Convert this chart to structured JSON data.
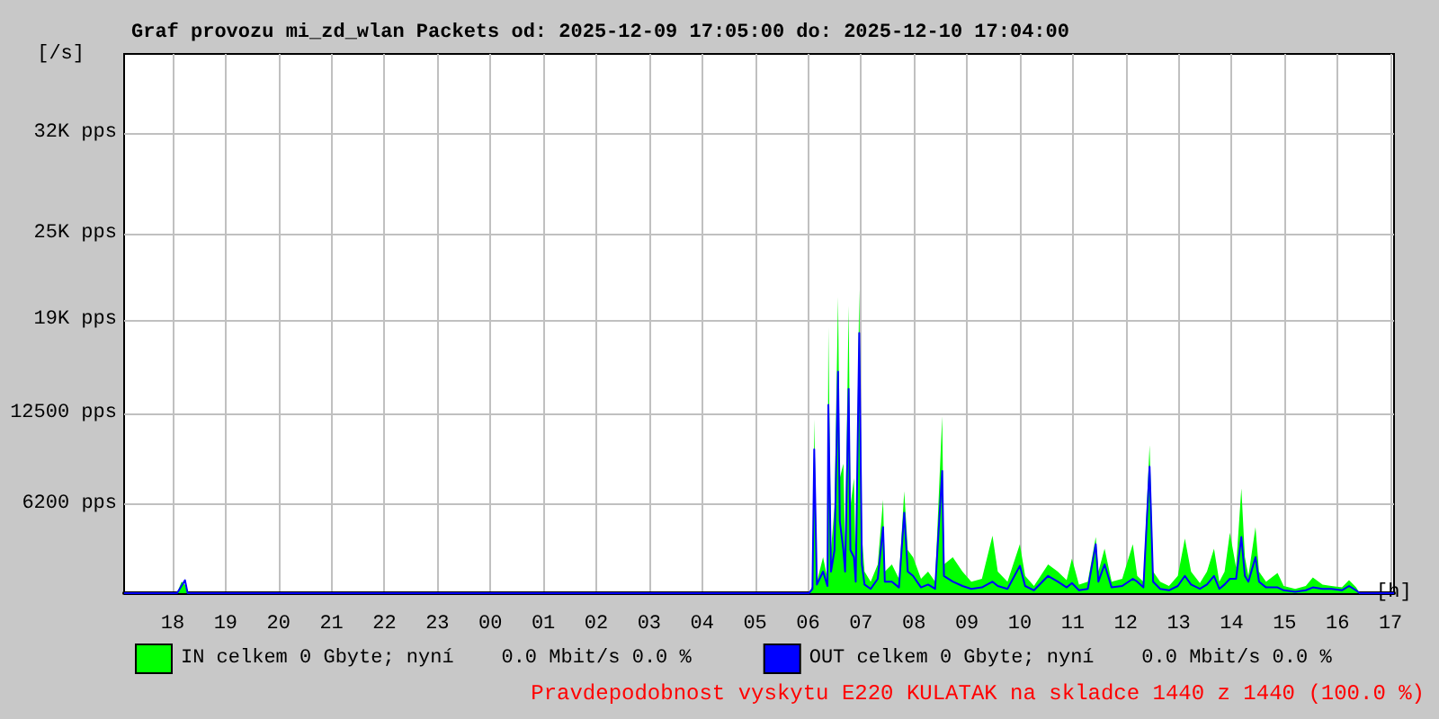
{
  "chart_data": {
    "type": "area",
    "title": "Graf provozu mi_zd_wlan Packets od: 2025-12-09 17:05:00 do: 2025-12-10 17:04:00",
    "xlabel": "[h]",
    "ylabel": "[/s]",
    "xlim": [
      "2025-12-09T17:05",
      "2025-12-10T17:04"
    ],
    "xticks": [
      {
        "value": "2025-12-09T18:00",
        "label": "18"
      },
      {
        "value": "2025-12-09T19:00",
        "label": "19"
      },
      {
        "value": "2025-12-09T20:00",
        "label": "20"
      },
      {
        "value": "2025-12-09T21:00",
        "label": "21"
      },
      {
        "value": "2025-12-09T22:00",
        "label": "22"
      },
      {
        "value": "2025-12-09T23:00",
        "label": "23"
      },
      {
        "value": "2025-12-10T00:00",
        "label": "00"
      },
      {
        "value": "2025-12-10T01:00",
        "label": "01"
      },
      {
        "value": "2025-12-10T02:00",
        "label": "02"
      },
      {
        "value": "2025-12-10T03:00",
        "label": "03"
      },
      {
        "value": "2025-12-10T04:00",
        "label": "04"
      },
      {
        "value": "2025-12-10T05:00",
        "label": "05"
      },
      {
        "value": "2025-12-10T06:00",
        "label": "06"
      },
      {
        "value": "2025-12-10T07:00",
        "label": "07"
      },
      {
        "value": "2025-12-10T08:00",
        "label": "08"
      },
      {
        "value": "2025-12-10T09:00",
        "label": "09"
      },
      {
        "value": "2025-12-10T10:00",
        "label": "10"
      },
      {
        "value": "2025-12-10T11:00",
        "label": "11"
      },
      {
        "value": "2025-12-10T12:00",
        "label": "12"
      },
      {
        "value": "2025-12-10T13:00",
        "label": "13"
      },
      {
        "value": "2025-12-10T14:00",
        "label": "14"
      },
      {
        "value": "2025-12-10T15:00",
        "label": "15"
      },
      {
        "value": "2025-12-10T16:00",
        "label": "16"
      },
      {
        "value": "2025-12-10T17:00",
        "label": "17"
      }
    ],
    "ylim": [
      0,
      37500
    ],
    "yticks": [
      {
        "value": 6200,
        "label": "6200 pps"
      },
      {
        "value": 12500,
        "label": "12500 pps"
      },
      {
        "value": 19000,
        "label": "19K pps"
      },
      {
        "value": 25000,
        "label": "25K pps"
      },
      {
        "value": 32000,
        "label": "32K pps"
      }
    ],
    "grid": true,
    "legend": "bottom",
    "marker": "none",
    "x": [
      "2025-12-09T17:05",
      "2025-12-09T18:05",
      "2025-12-09T18:10",
      "2025-12-09T18:14",
      "2025-12-09T18:17",
      "2025-12-10T06:01",
      "2025-12-10T06:05",
      "2025-12-10T06:07",
      "2025-12-10T06:10",
      "2025-12-10T06:17",
      "2025-12-10T06:22",
      "2025-12-10T06:23",
      "2025-12-10T06:26",
      "2025-12-10T06:30",
      "2025-12-10T06:34",
      "2025-12-10T06:36",
      "2025-12-10T06:40",
      "2025-12-10T06:42",
      "2025-12-10T06:46",
      "2025-12-10T06:48",
      "2025-12-10T06:52",
      "2025-12-10T06:54",
      "2025-12-10T06:58",
      "2025-12-10T07:01",
      "2025-12-10T07:04",
      "2025-12-10T07:11",
      "2025-12-10T07:19",
      "2025-12-10T07:25",
      "2025-12-10T07:27",
      "2025-12-10T07:35",
      "2025-12-10T07:43",
      "2025-12-10T07:49",
      "2025-12-10T07:53",
      "2025-12-10T07:59",
      "2025-12-10T08:08",
      "2025-12-10T08:16",
      "2025-12-10T08:24",
      "2025-12-10T08:32",
      "2025-12-10T08:34",
      "2025-12-10T08:44",
      "2025-12-10T08:55",
      "2025-12-10T09:05",
      "2025-12-10T09:17",
      "2025-12-10T09:29",
      "2025-12-10T09:35",
      "2025-12-10T09:46",
      "2025-12-10T10:00",
      "2025-12-10T10:06",
      "2025-12-10T10:16",
      "2025-12-10T10:32",
      "2025-12-10T10:43",
      "2025-12-10T10:53",
      "2025-12-10T10:59",
      "2025-12-10T11:07",
      "2025-12-10T11:17",
      "2025-12-10T11:26",
      "2025-12-10T11:29",
      "2025-12-10T11:36",
      "2025-12-10T11:44",
      "2025-12-10T11:56",
      "2025-12-10T12:08",
      "2025-12-10T12:13",
      "2025-12-10T12:20",
      "2025-12-10T12:27",
      "2025-12-10T12:31",
      "2025-12-10T12:39",
      "2025-12-10T12:49",
      "2025-12-10T12:59",
      "2025-12-10T13:07",
      "2025-12-10T13:14",
      "2025-12-10T13:24",
      "2025-12-10T13:32",
      "2025-12-10T13:40",
      "2025-12-10T13:46",
      "2025-12-10T13:52",
      "2025-12-10T13:58",
      "2025-12-10T14:05",
      "2025-12-10T14:11",
      "2025-12-10T14:15",
      "2025-12-10T14:19",
      "2025-12-10T14:27",
      "2025-12-10T14:31",
      "2025-12-10T14:39",
      "2025-12-10T14:52",
      "2025-12-10T14:59",
      "2025-12-10T15:12",
      "2025-12-10T15:24",
      "2025-12-10T15:32",
      "2025-12-10T15:43",
      "2025-12-10T15:53",
      "2025-12-10T16:05",
      "2025-12-10T16:13",
      "2025-12-10T16:21",
      "2025-12-10T16:25",
      "2025-12-10T17:04"
    ],
    "series": [
      {
        "name": "IN celkem 0 Gbyte; nyní    0.0 Mbit/s 0.0 %",
        "color": "#00ff00",
        "values": [
          0,
          0,
          800,
          600,
          0,
          0,
          500,
          12100,
          800,
          2500,
          1000,
          18500,
          3000,
          6000,
          20600,
          8000,
          9000,
          3000,
          20000,
          6000,
          8000,
          2000,
          21100,
          4000,
          1500,
          800,
          2000,
          6500,
          1500,
          2000,
          1000,
          7100,
          3000,
          2500,
          1000,
          1500,
          800,
          12300,
          2000,
          2500,
          1500,
          800,
          1000,
          4000,
          1500,
          800,
          3400,
          1200,
          500,
          2000,
          1500,
          900,
          2400,
          600,
          800,
          3900,
          1500,
          3100,
          800,
          1000,
          3400,
          1200,
          800,
          10300,
          1500,
          800,
          500,
          1200,
          3800,
          1500,
          700,
          1500,
          3100,
          800,
          1500,
          4200,
          1800,
          7300,
          2500,
          1200,
          4600,
          1500,
          800,
          1400,
          500,
          300,
          500,
          1100,
          600,
          500,
          400,
          900,
          400,
          0,
          0
        ]
      },
      {
        "name": "OUT celkem 0 Gbyte; nyní    0.0 Mbit/s 0.0 %",
        "color": "#0000ff",
        "type": "line",
        "values": [
          0,
          0,
          500,
          900,
          0,
          0,
          300,
          10000,
          600,
          1500,
          500,
          13100,
          1500,
          3000,
          15400,
          5000,
          3000,
          1500,
          14200,
          3000,
          2500,
          800,
          18100,
          2000,
          600,
          300,
          1000,
          4600,
          800,
          800,
          400,
          5600,
          1500,
          1200,
          400,
          600,
          300,
          8500,
          1200,
          800,
          500,
          300,
          400,
          800,
          500,
          300,
          1900,
          500,
          200,
          1200,
          800,
          400,
          700,
          200,
          300,
          3400,
          800,
          2000,
          400,
          500,
          1000,
          800,
          400,
          8800,
          800,
          300,
          200,
          500,
          1200,
          600,
          300,
          600,
          1200,
          300,
          600,
          1000,
          1000,
          3900,
          1200,
          800,
          2500,
          800,
          400,
          400,
          200,
          100,
          200,
          400,
          300,
          300,
          200,
          500,
          200,
          0,
          0
        ]
      }
    ],
    "annotations": [
      "Pravdepodobnost vyskytu E220 KULATAK na skladce 1440 z 1440 (100.0 %)"
    ]
  }
}
